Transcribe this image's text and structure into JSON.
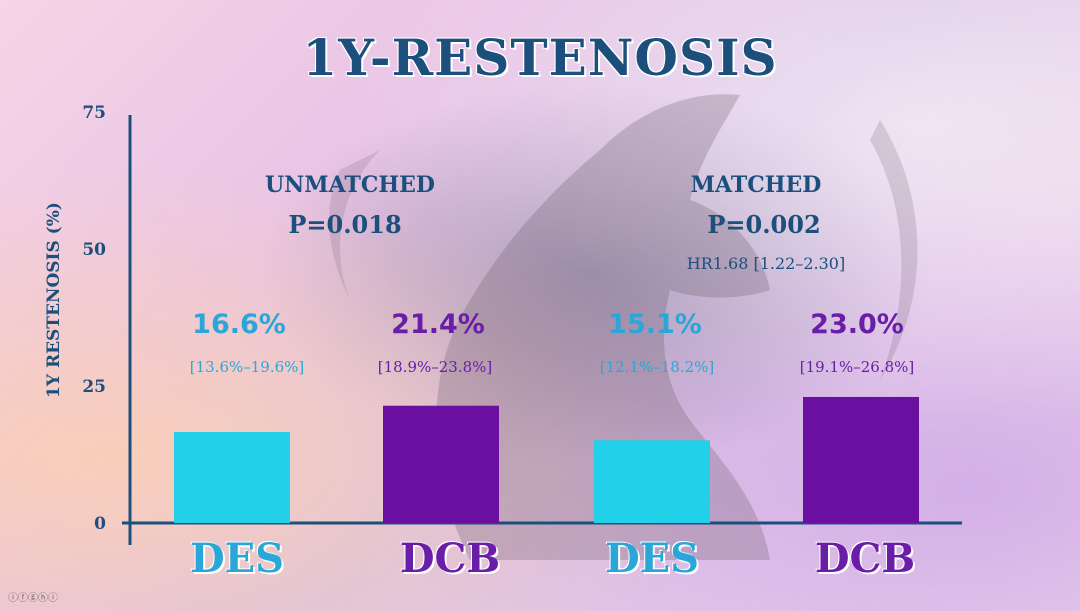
{
  "slide": {
    "title": "1Y-RESTENOSIS",
    "footer_icons": "ⓘⓕⓖⓗⓘ"
  },
  "chart_data": {
    "type": "bar",
    "title": "1Y-RESTENOSIS",
    "ylabel": "1Y RESTENOSIS (%)",
    "ylim": [
      0,
      75
    ],
    "yticks": [
      "0",
      "25",
      "50",
      "75"
    ],
    "categories": [
      "DES",
      "DCB",
      "DES",
      "DCB"
    ],
    "values": [
      16.6,
      21.4,
      15.1,
      23.0
    ],
    "value_labels": [
      "16.6%",
      "21.4%",
      "15.1%",
      "23.0%"
    ],
    "ci_labels": [
      "[13.6%–19.6%]",
      "[18.9%–23.8%]",
      "[12.1%–18.2%]",
      "[19.1%–26.8%]"
    ],
    "colors": [
      "#22d0ea",
      "#6a0fa0",
      "#22d0ea",
      "#6a0fa0"
    ],
    "label_colors": [
      "#2aa7d8",
      "#6a1ea8",
      "#2aa7d8",
      "#6a1ea8"
    ],
    "groups": [
      {
        "label": "UNMATCHED",
        "p": "P=0.018",
        "hr": ""
      },
      {
        "label": "MATCHED",
        "p": "P=0.002",
        "hr": "HR1.68 [1.22–2.30]"
      }
    ],
    "grid": false,
    "legend": "none"
  }
}
